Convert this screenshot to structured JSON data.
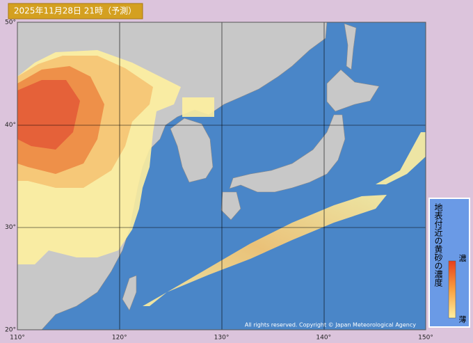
{
  "header": {
    "title": "2025年11月28日 21時（予測）"
  },
  "axes": {
    "lat_labels": [
      "50°",
      "40°",
      "30°",
      "20°"
    ],
    "lon_labels": [
      "110°",
      "120°",
      "130°",
      "140°",
      "150°"
    ]
  },
  "legend": {
    "title": "地表付近の黄砂の濃度",
    "high": "濃",
    "low": "薄"
  },
  "copyright": "All rights reserved. Copyright © Japan Meteorological Agency"
}
